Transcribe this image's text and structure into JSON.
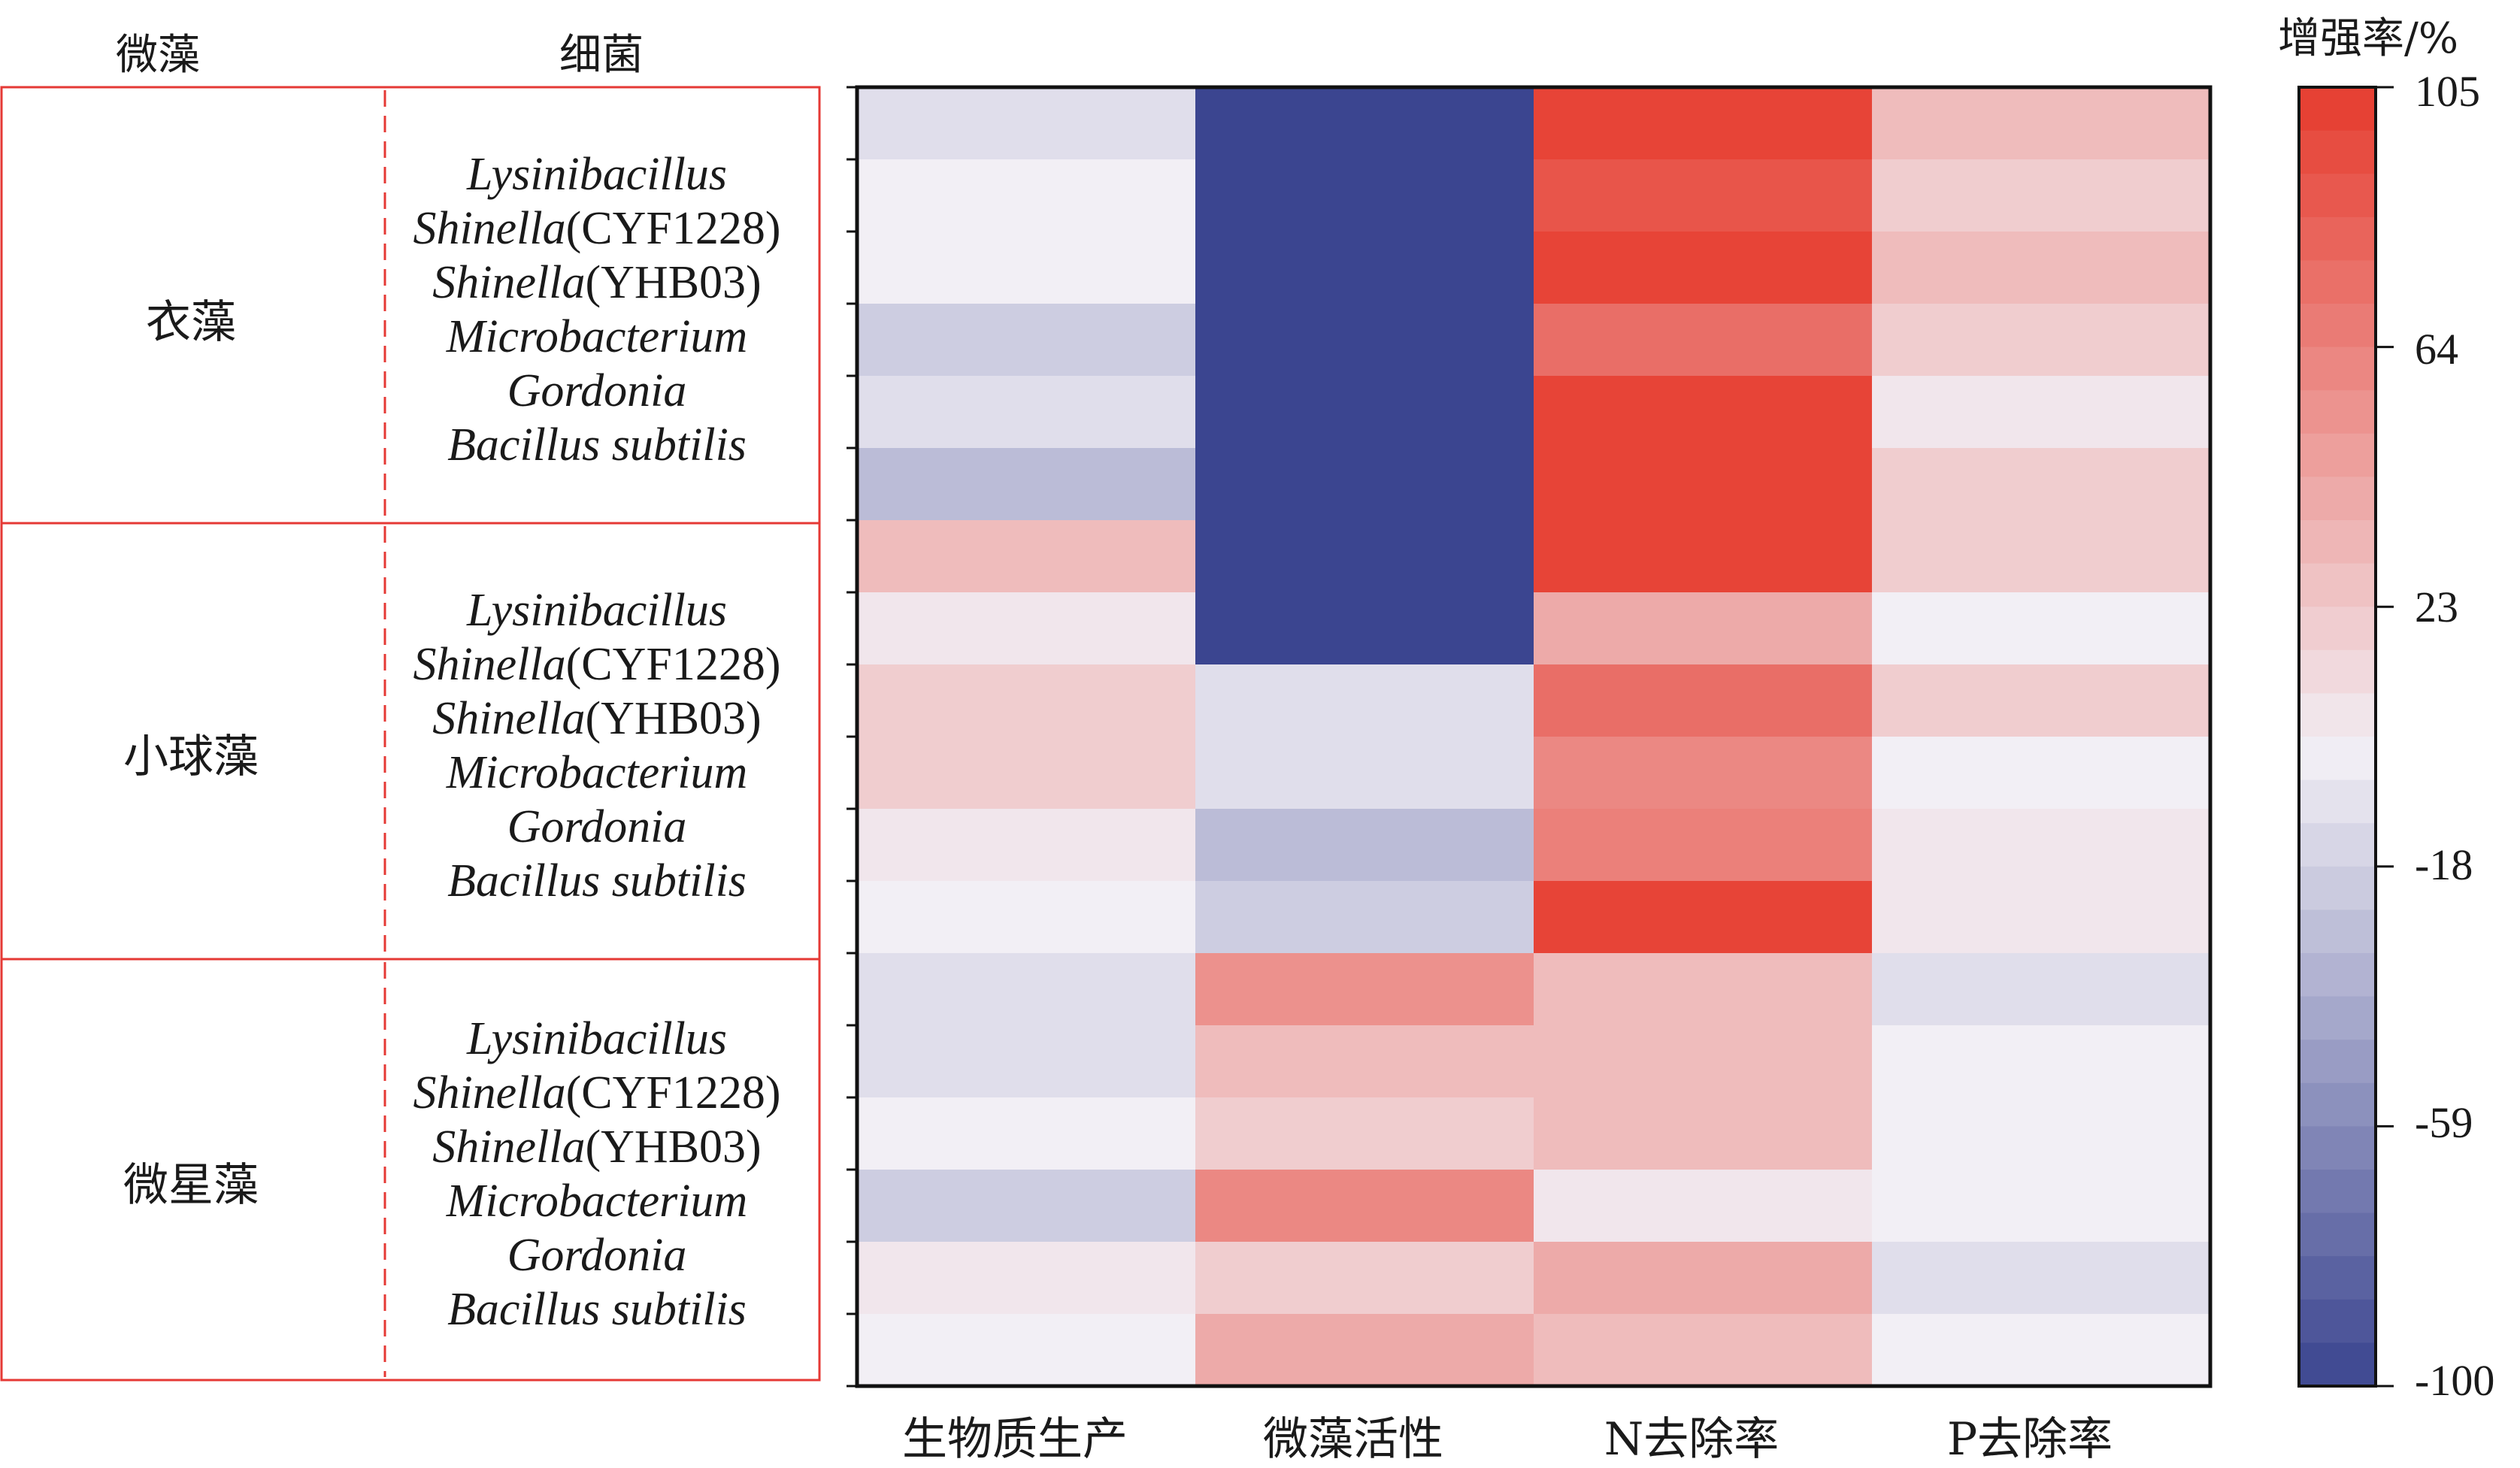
{
  "headers": {
    "microalgae": "微藻",
    "bacteria": "细菌"
  },
  "groups": [
    {
      "name": "衣藻",
      "bacteria": [
        {
          "it": "Lysinibacillus",
          "rest": ""
        },
        {
          "it": "Shinella",
          "rest": "(CYF1228)"
        },
        {
          "it": "Shinella",
          "rest": "(YHB03)"
        },
        {
          "it": "Microbacterium",
          "rest": ""
        },
        {
          "it": "Gordonia",
          "rest": ""
        },
        {
          "it": "Bacillus subtilis",
          "rest": ""
        }
      ]
    },
    {
      "name": "小球藻",
      "bacteria": [
        {
          "it": "Lysinibacillus",
          "rest": ""
        },
        {
          "it": "Shinella",
          "rest": "(CYF1228)"
        },
        {
          "it": "Shinella",
          "rest": "(YHB03)"
        },
        {
          "it": "Microbacterium",
          "rest": ""
        },
        {
          "it": "Gordonia",
          "rest": ""
        },
        {
          "it": "Bacillus subtilis",
          "rest": ""
        }
      ]
    },
    {
      "name": "微星藻",
      "bacteria": [
        {
          "it": "Lysinibacillus",
          "rest": ""
        },
        {
          "it": "Shinella",
          "rest": "(CYF1228)"
        },
        {
          "it": "Shinella",
          "rest": "(YHB03)"
        },
        {
          "it": "Microbacterium",
          "rest": ""
        },
        {
          "it": "Gordonia",
          "rest": ""
        },
        {
          "it": "Bacillus subtilis",
          "rest": ""
        }
      ]
    }
  ],
  "chart_data": {
    "type": "heatmap",
    "columns": [
      "生物质生产",
      "微藻活性",
      "N去除率",
      "P去除率"
    ],
    "colorbar": {
      "title": "增强率/%",
      "min": -100,
      "max": 105,
      "ticks": [
        105,
        64,
        23,
        -18,
        -59,
        -100
      ],
      "low_color": "#3b4590",
      "mid_color": "#f2eff5",
      "high_color": "#e63b2e"
    },
    "values": [
      [
        -10,
        -100,
        100,
        30
      ],
      [
        0,
        -100,
        90,
        20
      ],
      [
        0,
        -100,
        100,
        30
      ],
      [
        -20,
        -100,
        75,
        20
      ],
      [
        -10,
        -100,
        100,
        5
      ],
      [
        -30,
        -100,
        100,
        20
      ],
      [
        30,
        -100,
        100,
        20
      ],
      [
        5,
        -100,
        40,
        0
      ],
      [
        20,
        -10,
        75,
        20
      ],
      [
        20,
        -10,
        60,
        0
      ],
      [
        5,
        -30,
        65,
        5
      ],
      [
        0,
        -20,
        100,
        5
      ],
      [
        -10,
        55,
        30,
        -10
      ],
      [
        -10,
        30,
        30,
        0
      ],
      [
        0,
        20,
        30,
        0
      ],
      [
        -20,
        60,
        5,
        0
      ],
      [
        5,
        20,
        40,
        -10
      ],
      [
        0,
        40,
        30,
        0
      ]
    ]
  }
}
